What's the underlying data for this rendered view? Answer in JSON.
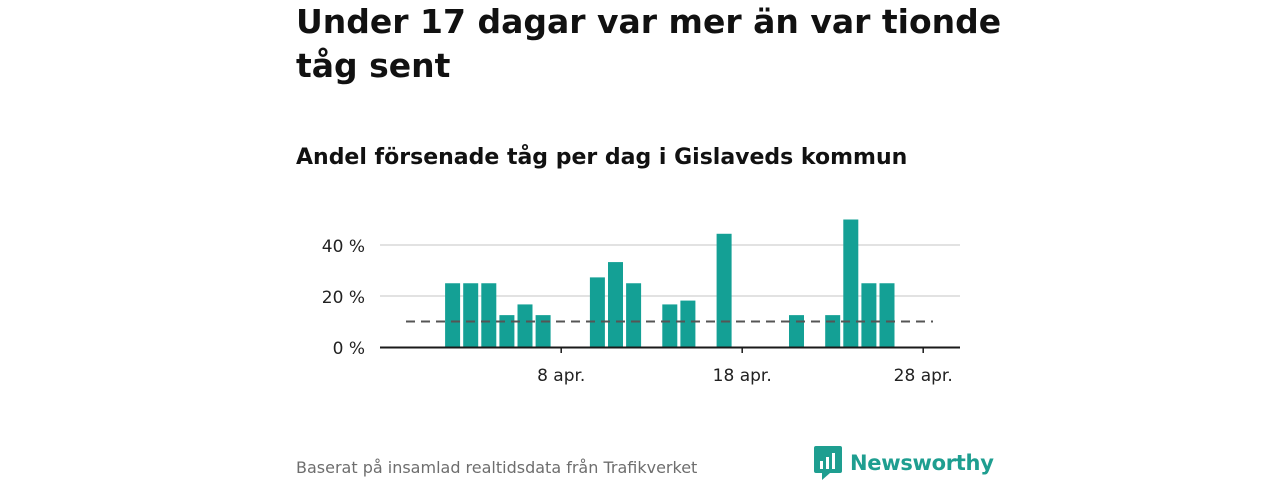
{
  "title": "Under 17 dagar var mer än var tionde tåg sent",
  "subtitle": "Andel försenade tåg per dag i Gislaveds kommun",
  "source": "Baserat på insamlad realtidsdata från Trafikverket",
  "brand": {
    "name": "Newsworthy",
    "icon": "newsworthy-logo-icon"
  },
  "colors": {
    "bar": "#14a095",
    "reference_line": "#555555",
    "grid": "#d9d9d9",
    "axis": "#1a1a1a",
    "brand": "#1e9e90"
  },
  "chart_data": {
    "type": "bar",
    "x_unit": "day",
    "categories": [
      "1 apr.",
      "2 apr.",
      "3 apr.",
      "4 apr.",
      "5 apr.",
      "6 apr.",
      "7 apr.",
      "8 apr.",
      "9 apr.",
      "10 apr.",
      "11 apr.",
      "12 apr.",
      "13 apr.",
      "14 apr.",
      "15 apr.",
      "16 apr.",
      "17 apr.",
      "18 apr.",
      "19 apr.",
      "20 apr.",
      "21 apr.",
      "22 apr.",
      "23 apr.",
      "24 apr.",
      "25 apr.",
      "26 apr.",
      "27 apr.",
      "28 apr.",
      "29 apr.",
      "30 apr."
    ],
    "values": [
      0,
      25,
      25,
      25,
      12.5,
      16.7,
      12.5,
      0,
      0,
      27.3,
      33.3,
      25,
      0,
      16.7,
      18.2,
      0,
      44.4,
      0,
      0,
      0,
      12.5,
      0,
      12.5,
      50,
      25,
      25,
      0,
      0,
      0,
      0
    ],
    "unit": "%",
    "reference_line": 10,
    "ylim": [
      0,
      52
    ],
    "yticks": [
      0,
      20,
      40
    ],
    "ytick_labels": [
      "0 %",
      "20 %",
      "40 %"
    ],
    "xticks": [
      "8 apr.",
      "18 apr.",
      "28 apr."
    ],
    "grid": true,
    "legend": "none"
  }
}
